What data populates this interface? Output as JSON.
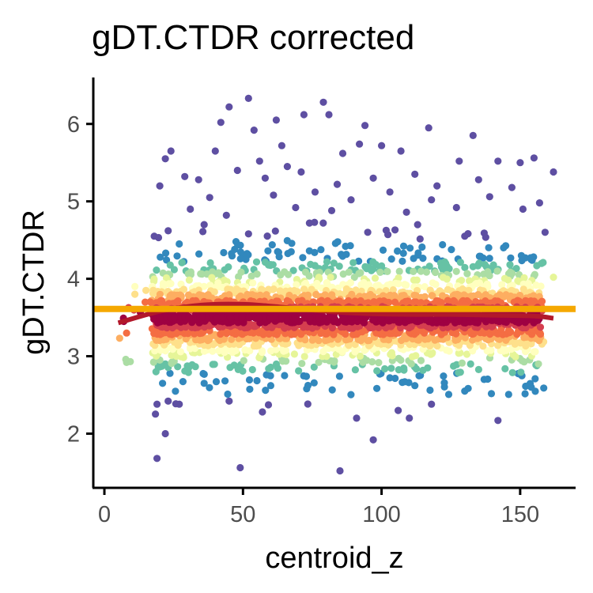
{
  "chart_data": {
    "type": "scatter",
    "title": "gDT.CTDR corrected",
    "xlabel": "centroid_z",
    "ylabel": "gDT.CTDR",
    "xlim": [
      -4,
      170
    ],
    "ylim": [
      1.3,
      6.6
    ],
    "x_ticks": [
      0,
      50,
      100,
      150
    ],
    "y_ticks": [
      2,
      3,
      4,
      5,
      6
    ],
    "x_tick_labels": [
      "0",
      "50",
      "100",
      "150"
    ],
    "y_tick_labels": [
      "2",
      "3",
      "4",
      "5",
      "6"
    ],
    "grid": false,
    "legend": "none",
    "point_color_scale": "density (Spectral palette: dark red = high, purple = low)",
    "palette": [
      "#9e0142",
      "#d53e4f",
      "#f46d43",
      "#fdae61",
      "#fee08b",
      "#ffffbf",
      "#e6f598",
      "#abdda4",
      "#66c2a5",
      "#3288bd",
      "#5e4fa2"
    ],
    "x_range_of_points": [
      5,
      162
    ],
    "core_band": {
      "center": 3.5,
      "spread": 0.25
    },
    "outliers": [
      {
        "x": 52,
        "y": 6.33
      },
      {
        "x": 45,
        "y": 6.22
      },
      {
        "x": 79,
        "y": 6.28
      },
      {
        "x": 72,
        "y": 6.12
      },
      {
        "x": 42,
        "y": 6.02
      },
      {
        "x": 62,
        "y": 6.05
      },
      {
        "x": 81,
        "y": 6.12
      },
      {
        "x": 117,
        "y": 5.95
      },
      {
        "x": 54,
        "y": 5.92
      },
      {
        "x": 94,
        "y": 5.98
      },
      {
        "x": 133,
        "y": 5.85
      },
      {
        "x": 86,
        "y": 5.62
      },
      {
        "x": 24,
        "y": 5.65
      },
      {
        "x": 22,
        "y": 5.55
      },
      {
        "x": 40,
        "y": 5.65
      },
      {
        "x": 56,
        "y": 5.52
      },
      {
        "x": 64,
        "y": 5.72
      },
      {
        "x": 92,
        "y": 5.74
      },
      {
        "x": 100,
        "y": 5.72
      },
      {
        "x": 107,
        "y": 5.65
      },
      {
        "x": 128,
        "y": 5.52
      },
      {
        "x": 142,
        "y": 5.52
      },
      {
        "x": 155,
        "y": 5.56
      },
      {
        "x": 150,
        "y": 5.5
      },
      {
        "x": 29,
        "y": 5.32
      },
      {
        "x": 34,
        "y": 5.28
      },
      {
        "x": 48,
        "y": 5.4
      },
      {
        "x": 58,
        "y": 5.3
      },
      {
        "x": 66,
        "y": 5.45
      },
      {
        "x": 71,
        "y": 5.38
      },
      {
        "x": 84,
        "y": 5.22
      },
      {
        "x": 97,
        "y": 5.3
      },
      {
        "x": 112,
        "y": 5.35
      },
      {
        "x": 120,
        "y": 5.2
      },
      {
        "x": 135,
        "y": 5.28
      },
      {
        "x": 147,
        "y": 5.18
      },
      {
        "x": 162,
        "y": 5.38
      },
      {
        "x": 20,
        "y": 5.2
      },
      {
        "x": 38,
        "y": 5.05
      },
      {
        "x": 61,
        "y": 5.08
      },
      {
        "x": 76,
        "y": 5.12
      },
      {
        "x": 89,
        "y": 5.02
      },
      {
        "x": 103,
        "y": 5.12
      },
      {
        "x": 118,
        "y": 5.02
      },
      {
        "x": 139,
        "y": 5.06
      },
      {
        "x": 157,
        "y": 4.98
      },
      {
        "x": 31,
        "y": 4.9
      },
      {
        "x": 44,
        "y": 4.82
      },
      {
        "x": 69,
        "y": 4.92
      },
      {
        "x": 82,
        "y": 4.88
      },
      {
        "x": 109,
        "y": 4.86
      },
      {
        "x": 127,
        "y": 4.92
      },
      {
        "x": 151,
        "y": 4.9
      },
      {
        "x": 23,
        "y": 4.62
      },
      {
        "x": 18,
        "y": 4.55
      },
      {
        "x": 36,
        "y": 4.7
      },
      {
        "x": 52,
        "y": 4.58
      },
      {
        "x": 74,
        "y": 4.72
      },
      {
        "x": 95,
        "y": 4.6
      },
      {
        "x": 113,
        "y": 4.7
      },
      {
        "x": 130,
        "y": 4.55
      },
      {
        "x": 159,
        "y": 4.6
      },
      {
        "x": 27,
        "y": 4.45
      },
      {
        "x": 47,
        "y": 4.38
      },
      {
        "x": 87,
        "y": 4.42
      },
      {
        "x": 122,
        "y": 4.44
      },
      {
        "x": 144,
        "y": 4.4
      },
      {
        "x": 11,
        "y": 3.9
      },
      {
        "x": 7,
        "y": 3.45
      },
      {
        "x": 8,
        "y": 3.3
      },
      {
        "x": 15,
        "y": 3.85
      },
      {
        "x": 162,
        "y": 4.02
      },
      {
        "x": 20,
        "y": 2.95
      },
      {
        "x": 22,
        "y": 2.9
      },
      {
        "x": 21,
        "y": 2.65
      },
      {
        "x": 23,
        "y": 2.42
      },
      {
        "x": 19,
        "y": 2.38
      },
      {
        "x": 27,
        "y": 2.38
      },
      {
        "x": 8,
        "y": 2.92
      },
      {
        "x": 22,
        "y": 2.0
      },
      {
        "x": 19,
        "y": 1.68
      },
      {
        "x": 49,
        "y": 1.56
      },
      {
        "x": 85,
        "y": 1.52
      },
      {
        "x": 57,
        "y": 2.28
      },
      {
        "x": 73,
        "y": 2.58
      },
      {
        "x": 91,
        "y": 2.2
      },
      {
        "x": 97,
        "y": 1.92
      },
      {
        "x": 106,
        "y": 2.3
      },
      {
        "x": 110,
        "y": 2.2
      },
      {
        "x": 118,
        "y": 2.38
      },
      {
        "x": 142,
        "y": 2.17
      },
      {
        "x": 130,
        "y": 2.55
      },
      {
        "x": 154,
        "y": 2.6
      },
      {
        "x": 45,
        "y": 2.42
      },
      {
        "x": 65,
        "y": 2.75
      },
      {
        "x": 36,
        "y": 2.65
      },
      {
        "x": 103,
        "y": 2.72
      },
      {
        "x": 137,
        "y": 2.7
      },
      {
        "x": 60,
        "y": 2.62
      },
      {
        "x": 112,
        "y": 2.62
      }
    ],
    "series": [
      {
        "values_kind": "loess_smooth",
        "color": "#b2182b",
        "x": [
          5,
          20,
          35,
          50,
          65,
          80,
          95,
          110,
          125,
          140,
          155,
          162
        ],
        "values": [
          3.43,
          3.58,
          3.66,
          3.67,
          3.63,
          3.58,
          3.55,
          3.54,
          3.54,
          3.53,
          3.52,
          3.49
        ]
      },
      {
        "values_kind": "reference_line",
        "color": "#f5a800",
        "x": [
          -4,
          170
        ],
        "values": [
          3.61,
          3.61
        ]
      }
    ]
  }
}
